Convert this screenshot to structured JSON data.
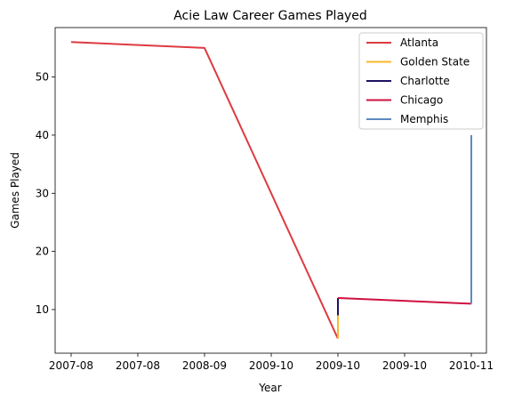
{
  "chart_data": {
    "type": "line",
    "title": "Acie Law Career Games Played",
    "xlabel": "Year",
    "ylabel": "Games Played",
    "x_ticks": [
      "2007-08",
      "2007-08",
      "2008-09",
      "2009-10",
      "2009-10",
      "2009-10",
      "2010-11"
    ],
    "y_ticks": [
      10,
      20,
      30,
      40,
      50
    ],
    "ylim": [
      2.5,
      58.5
    ],
    "grid": false,
    "legend_placement": "top-right",
    "series": [
      {
        "name": "Atlanta",
        "color": "#dd3b41",
        "points": [
          [
            "2007-08",
            56
          ],
          [
            "2008-09",
            55
          ],
          [
            "2009-10",
            5
          ]
        ]
      },
      {
        "name": "Golden State",
        "color": "#fbb829",
        "points": [
          [
            "2009-10",
            5
          ],
          [
            "2009-10",
            9
          ]
        ]
      },
      {
        "name": "Charlotte",
        "color": "#1d1160",
        "points": [
          [
            "2009-10",
            9
          ],
          [
            "2009-10",
            12
          ]
        ]
      },
      {
        "name": "Chicago",
        "color": "#ce1141",
        "points": [
          [
            "2009-10",
            12
          ],
          [
            "2010-11",
            11
          ]
        ]
      },
      {
        "name": "Memphis",
        "color": "#5d8ac0",
        "points": [
          [
            "2010-11",
            11
          ],
          [
            "2010-11",
            40
          ]
        ]
      }
    ]
  }
}
